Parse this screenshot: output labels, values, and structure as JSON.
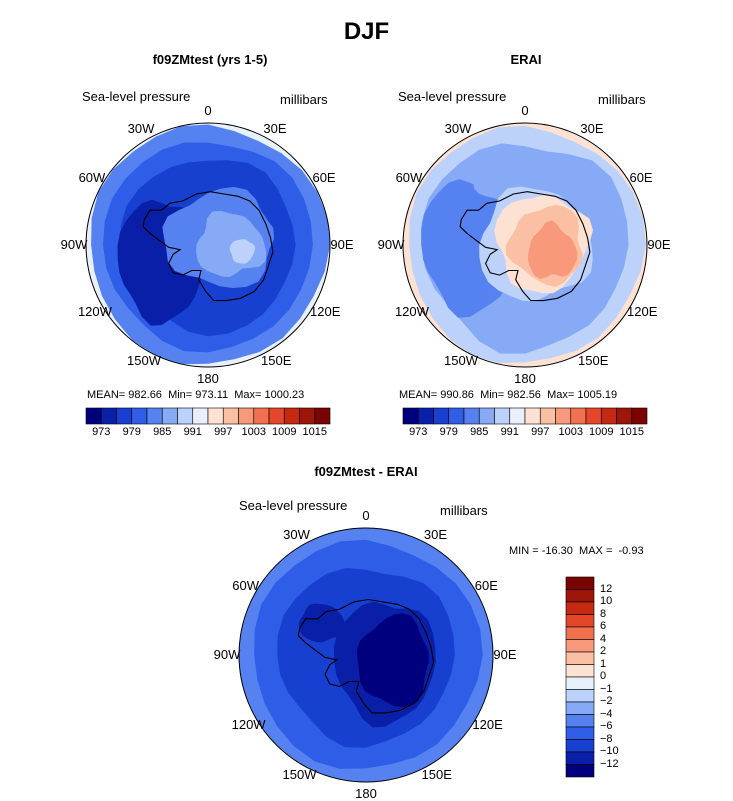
{
  "title": "DJF",
  "colors": {
    "levels": [
      "#00007f",
      "#0a1fa8",
      "#1740d0",
      "#2e5ee8",
      "#5582f0",
      "#86aaf5",
      "#bcd2fa",
      "#e8f0fc",
      "#fde1d3",
      "#fbbfa4",
      "#f7997a",
      "#f1704f",
      "#e44728",
      "#c42a12",
      "#9d1408",
      "#7a0402"
    ],
    "diff_levels": [
      "#00007f",
      "#0a1fa8",
      "#1740d0",
      "#2e5ee8",
      "#5582f0",
      "#86aaf5",
      "#bcd2fa",
      "#e8f0fc",
      "#fde1d3",
      "#fbbfa4",
      "#f7997a",
      "#f1704f",
      "#e44728",
      "#c42a12",
      "#9d1408",
      "#7a0402"
    ],
    "coast": "#000000"
  },
  "panels": [
    {
      "id": "model",
      "title": "f09ZMtest (yrs 1-5)",
      "field_label": "Sea-level pressure",
      "unit_label": "millibars",
      "lon_labels": [
        "0",
        "30E",
        "60E",
        "90E",
        "120E",
        "150E",
        "180",
        "150W",
        "120W",
        "90W",
        "60W",
        "30W"
      ],
      "stats": {
        "mean_label": "MEAN=",
        "mean": "982.66",
        "min_label": "Min=",
        "min": "973.11",
        "max_label": "Max=",
        "max": "1000.23"
      },
      "colorbar_ticks": [
        "973",
        "979",
        "985",
        "991",
        "997",
        "1003",
        "1009",
        "1015"
      ]
    },
    {
      "id": "obs",
      "title": "ERAI",
      "field_label": "Sea-level pressure",
      "unit_label": "millibars",
      "lon_labels": [
        "0",
        "30E",
        "60E",
        "90E",
        "120E",
        "150E",
        "180",
        "150W",
        "120W",
        "90W",
        "60W",
        "30W"
      ],
      "stats": {
        "mean_label": "MEAN=",
        "mean": "990.86",
        "min_label": "Min=",
        "min": "982.56",
        "max_label": "Max=",
        "max": "1005.19"
      },
      "colorbar_ticks": [
        "973",
        "979",
        "985",
        "991",
        "997",
        "1003",
        "1009",
        "1015"
      ]
    },
    {
      "id": "diff",
      "title": "f09ZMtest - ERAI",
      "field_label": "Sea-level pressure",
      "unit_label": "millibars",
      "lon_labels": [
        "0",
        "30E",
        "60E",
        "90E",
        "120E",
        "150E",
        "180",
        "150W",
        "120W",
        "90W",
        "60W",
        "30W"
      ],
      "stats": {
        "min_label": "MIN =",
        "min": "-16.30",
        "max_label": "MAX =",
        "max": "-0.93"
      },
      "colorbar_ticks": [
        "12",
        "10",
        "8",
        "6",
        "4",
        "2",
        "1",
        "0",
        "−1",
        "−2",
        "−4",
        "−6",
        "−8",
        "−10",
        "−12"
      ]
    }
  ]
}
